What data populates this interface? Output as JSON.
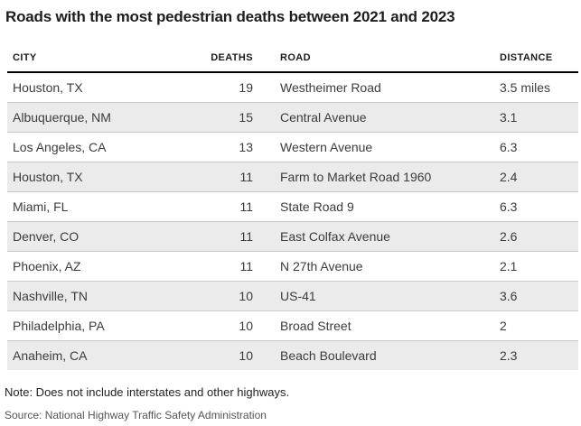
{
  "title": "Roads with the most pedestrian deaths between 2021 and 2023",
  "note": "Note: Does not include interstates and other highways.",
  "source": "Source: National Highway Traffic Safety Administration",
  "colors": {
    "row_stripe": "#ebebeb",
    "row_divider": "#c9c9c9",
    "header_rule": "#000000",
    "title_text": "#1d1d1d",
    "cell_text": "#3c3c3c"
  },
  "table": {
    "headers": {
      "city": "City",
      "deaths": "Deaths",
      "road": "Road",
      "distance": "Distance"
    },
    "rows": [
      {
        "city": "Houston, TX",
        "deaths": "19",
        "road": "Westheimer Road",
        "distance": "3.5 miles"
      },
      {
        "city": "Albuquerque, NM",
        "deaths": "15",
        "road": "Central Avenue",
        "distance": "3.1"
      },
      {
        "city": "Los Angeles, CA",
        "deaths": "13",
        "road": "Western Avenue",
        "distance": "6.3"
      },
      {
        "city": "Houston, TX",
        "deaths": "11",
        "road": "Farm to Market Road 1960",
        "distance": "2.4"
      },
      {
        "city": "Miami, FL",
        "deaths": "11",
        "road": "State Road 9",
        "distance": "6.3"
      },
      {
        "city": "Denver, CO",
        "deaths": "11",
        "road": "East Colfax Avenue",
        "distance": "2.6"
      },
      {
        "city": "Phoenix, AZ",
        "deaths": "11",
        "road": "N 27th Avenue",
        "distance": "2.1"
      },
      {
        "city": "Nashville, TN",
        "deaths": "10",
        "road": "US-41",
        "distance": "3.6"
      },
      {
        "city": "Philadelphia, PA",
        "deaths": "10",
        "road": "Broad Street",
        "distance": "2"
      },
      {
        "city": "Anaheim, CA",
        "deaths": "10",
        "road": "Beach Boulevard",
        "distance": "2.3"
      }
    ]
  },
  "chart_data": {
    "type": "table",
    "title": "Roads with the most pedestrian deaths between 2021 and 2023",
    "columns": [
      "City",
      "Deaths",
      "Road",
      "Distance"
    ],
    "rows": [
      [
        "Houston, TX",
        19,
        "Westheimer Road",
        "3.5 miles"
      ],
      [
        "Albuquerque, NM",
        15,
        "Central Avenue",
        "3.1"
      ],
      [
        "Los Angeles, CA",
        13,
        "Western Avenue",
        "6.3"
      ],
      [
        "Houston, TX",
        11,
        "Farm to Market Road 1960",
        "2.4"
      ],
      [
        "Miami, FL",
        11,
        "State Road 9",
        "6.3"
      ],
      [
        "Denver, CO",
        11,
        "East Colfax Avenue",
        "2.6"
      ],
      [
        "Phoenix, AZ",
        11,
        "N 27th Avenue",
        "2.1"
      ],
      [
        "Nashville, TN",
        10,
        "US-41",
        "3.6"
      ],
      [
        "Philadelphia, PA",
        10,
        "Broad Street",
        "2"
      ],
      [
        "Anaheim, CA",
        10,
        "Beach Boulevard",
        "2.3"
      ]
    ],
    "layout_hints": {
      "zebra_striping": true,
      "stripe_rows": "even",
      "deaths_column_align": "right",
      "distance_unit_shown_on_first_row_only": true
    }
  }
}
